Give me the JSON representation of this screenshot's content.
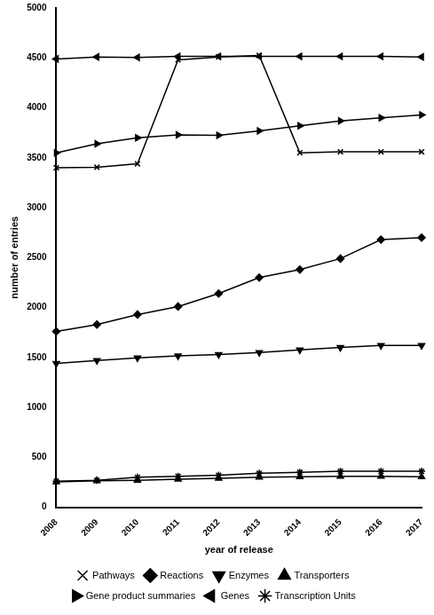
{
  "chart_data": {
    "type": "line",
    "x_label": "year of release",
    "y_label": "number of entries",
    "categories": [
      "2008",
      "2009",
      "2010",
      "2011",
      "2012",
      "2013",
      "2014",
      "2015",
      "2016",
      "2017"
    ],
    "series": [
      {
        "name": "Pathways",
        "color": "#000000",
        "marker": "x",
        "values": [
          3400,
          3405,
          3440,
          4480,
          4510,
          4525,
          3550,
          3560,
          3560,
          3560
        ]
      },
      {
        "name": "Reactions",
        "color": "#000000",
        "marker": "diamond",
        "values": [
          1760,
          1830,
          1930,
          2010,
          2140,
          2300,
          2380,
          2490,
          2680,
          2700
        ]
      },
      {
        "name": "Enzymes",
        "color": "#000000",
        "marker": "triangle-down",
        "values": [
          1440,
          1470,
          1495,
          1515,
          1530,
          1550,
          1575,
          1600,
          1620,
          1620
        ]
      },
      {
        "name": "Transporters",
        "color": "#000000",
        "marker": "triangle-up",
        "values": [
          255,
          265,
          270,
          280,
          290,
          300,
          305,
          310,
          310,
          305
        ]
      },
      {
        "name": "Gene product summaries",
        "color": "#000000",
        "marker": "triangle-right",
        "values": [
          3550,
          3640,
          3700,
          3730,
          3725,
          3770,
          3820,
          3870,
          3900,
          3930
        ]
      },
      {
        "name": "Genes",
        "color": "#000000",
        "marker": "triangle-left",
        "values": [
          4490,
          4510,
          4505,
          4515,
          4515,
          4515,
          4515,
          4515,
          4515,
          4510
        ]
      },
      {
        "name": "Transcription Units",
        "color": "#000000",
        "marker": "star",
        "values": [
          260,
          270,
          300,
          310,
          320,
          340,
          350,
          360,
          360,
          360
        ]
      }
    ],
    "ylim": [
      0,
      5000
    ],
    "yticks": [
      0,
      500,
      1000,
      1500,
      2000,
      2500,
      3000,
      3500,
      4000,
      4500,
      5000
    ],
    "grid": false,
    "legend": "bottom"
  }
}
